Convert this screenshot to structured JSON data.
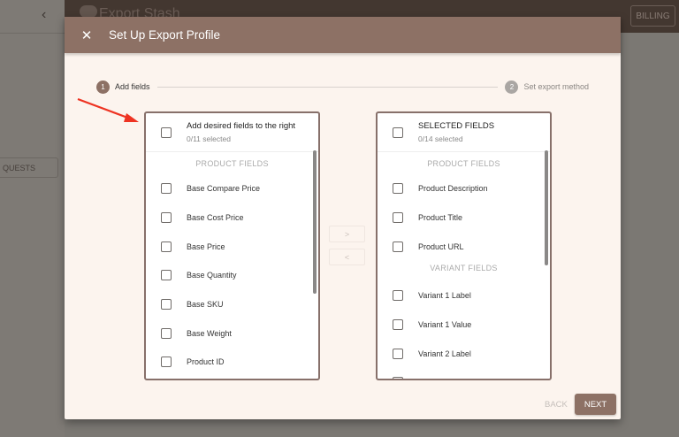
{
  "app": {
    "title": "Export Stash",
    "billing": "BILLING",
    "requests": "QUESTS",
    "back_chevron": "‹"
  },
  "modal": {
    "close": "✕",
    "title": "Set Up Export Profile",
    "steps": [
      {
        "num": "1",
        "label": "Add fields"
      },
      {
        "num": "2",
        "label": "Set export method"
      }
    ],
    "left": {
      "title": "Add desired fields to the right",
      "count": "0/11 selected",
      "section": "PRODUCT FIELDS",
      "items": [
        "Base Compare Price",
        "Base Cost Price",
        "Base Price",
        "Base Quantity",
        "Base SKU",
        "Base Weight",
        "Product ID"
      ]
    },
    "right": {
      "title": "SELECTED FIELDS",
      "count": "0/14 selected",
      "section1": "PRODUCT FIELDS",
      "items1": [
        "Product Description",
        "Product Title",
        "Product URL"
      ],
      "section2": "VARIANT FIELDS",
      "items2": [
        "Variant 1 Label",
        "Variant 1 Value",
        "Variant 2 Label"
      ]
    },
    "move_right": ">",
    "move_left": "<",
    "back": "BACK",
    "next": "NEXT"
  },
  "colors": {
    "accent": "#8d7165",
    "annotation_arrow": "#ee3322"
  }
}
